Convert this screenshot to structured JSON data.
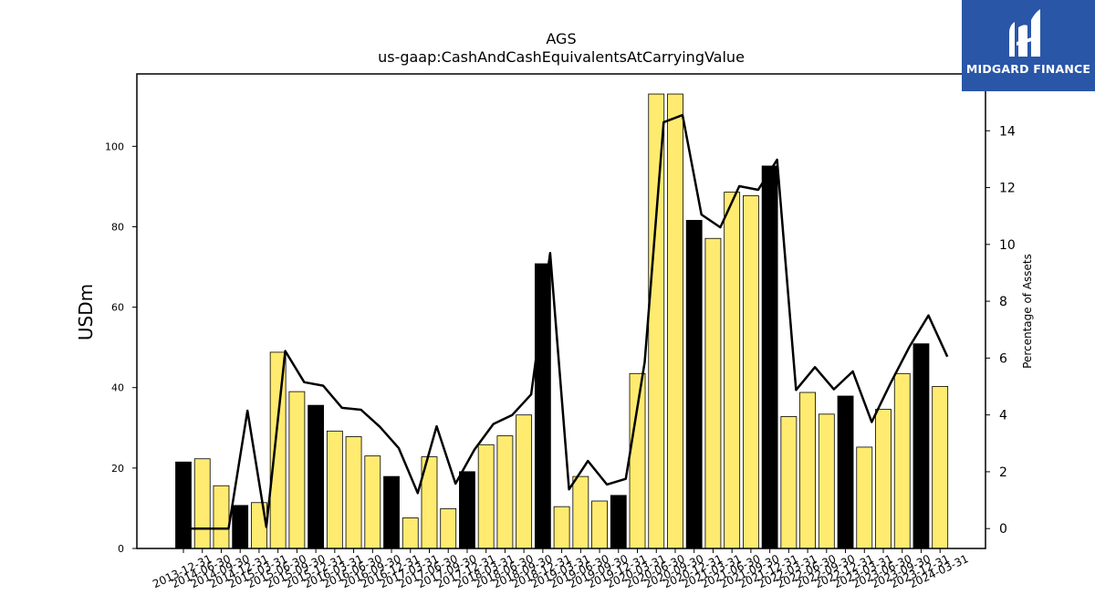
{
  "chart_data": {
    "type": "bar",
    "title": "AGS",
    "subtitle": "us-gaap:CashAndCashEquivalentsAtCarryingValue",
    "ylabel": "USDm",
    "y2label": "Percentage of Assets",
    "ylim": [
      0,
      118
    ],
    "y2lim": [
      -0.7,
      16.0
    ],
    "yticks": [
      0,
      20,
      40,
      60,
      80,
      100
    ],
    "y2ticks": [
      0,
      2,
      4,
      6,
      8,
      10,
      12,
      14
    ],
    "bar_colors": {
      "annual": "#000000",
      "quarterly": "#ffeb70"
    },
    "line_color": "#000000",
    "categories": [
      "2013-12-31",
      "2014-06-30",
      "2014-09-30",
      "2014-12-31",
      "2015-03-31",
      "2015-06-30",
      "2015-09-30",
      "2015-12-31",
      "2016-03-31",
      "2016-06-30",
      "2016-09-30",
      "2016-12-31",
      "2017-03-31",
      "2017-06-30",
      "2017-09-30",
      "2017-12-31",
      "2018-03-31",
      "2018-06-30",
      "2018-09-30",
      "2018-12-31",
      "2019-03-31",
      "2019-06-30",
      "2019-09-30",
      "2019-12-31",
      "2020-03-31",
      "2020-06-30",
      "2020-09-30",
      "2020-12-31",
      "2021-03-31",
      "2021-06-30",
      "2021-09-30",
      "2021-12-31",
      "2022-03-31",
      "2022-06-30",
      "2022-09-30",
      "2022-12-31",
      "2023-03-31",
      "2023-06-30",
      "2023-09-30",
      "2023-12-31",
      "2024-03-31"
    ],
    "series": [
      {
        "values": [
          21.5,
          22.3,
          15.6,
          10.7,
          11.4,
          48.8,
          39.0,
          35.6,
          29.2,
          27.8,
          23.0,
          17.9,
          7.6,
          22.8,
          9.9,
          19.1,
          25.8,
          28.0,
          33.2,
          70.8,
          10.4,
          17.9,
          11.8,
          13.2,
          43.5,
          113.0,
          113.0,
          81.6,
          77.1,
          88.6,
          87.7,
          95.1,
          32.8,
          38.8,
          33.4,
          37.9,
          25.2,
          34.6,
          43.5,
          50.9,
          40.3
        ],
        "annual": [
          true,
          false,
          false,
          true,
          false,
          false,
          false,
          true,
          false,
          false,
          false,
          true,
          false,
          false,
          false,
          true,
          false,
          false,
          false,
          true,
          false,
          false,
          false,
          true,
          false,
          false,
          false,
          true,
          false,
          false,
          false,
          true,
          false,
          false,
          false,
          true,
          false,
          false,
          false,
          true,
          false
        ]
      },
      {
        "values": [
          0.0,
          0.0,
          0.0,
          4.15,
          0.05,
          6.25,
          5.15,
          5.03,
          4.25,
          4.18,
          3.58,
          2.83,
          1.25,
          3.6,
          1.58,
          2.78,
          3.68,
          4.0,
          4.72,
          9.7,
          1.38,
          2.38,
          1.55,
          1.75,
          5.85,
          14.3,
          14.55,
          11.05,
          10.6,
          12.05,
          11.92,
          12.98,
          4.88,
          5.68,
          4.9,
          5.53,
          3.75,
          5.12,
          6.4,
          7.5,
          6.05
        ]
      }
    ]
  },
  "logo": {
    "text": "MIDGARD FINANCE"
  }
}
